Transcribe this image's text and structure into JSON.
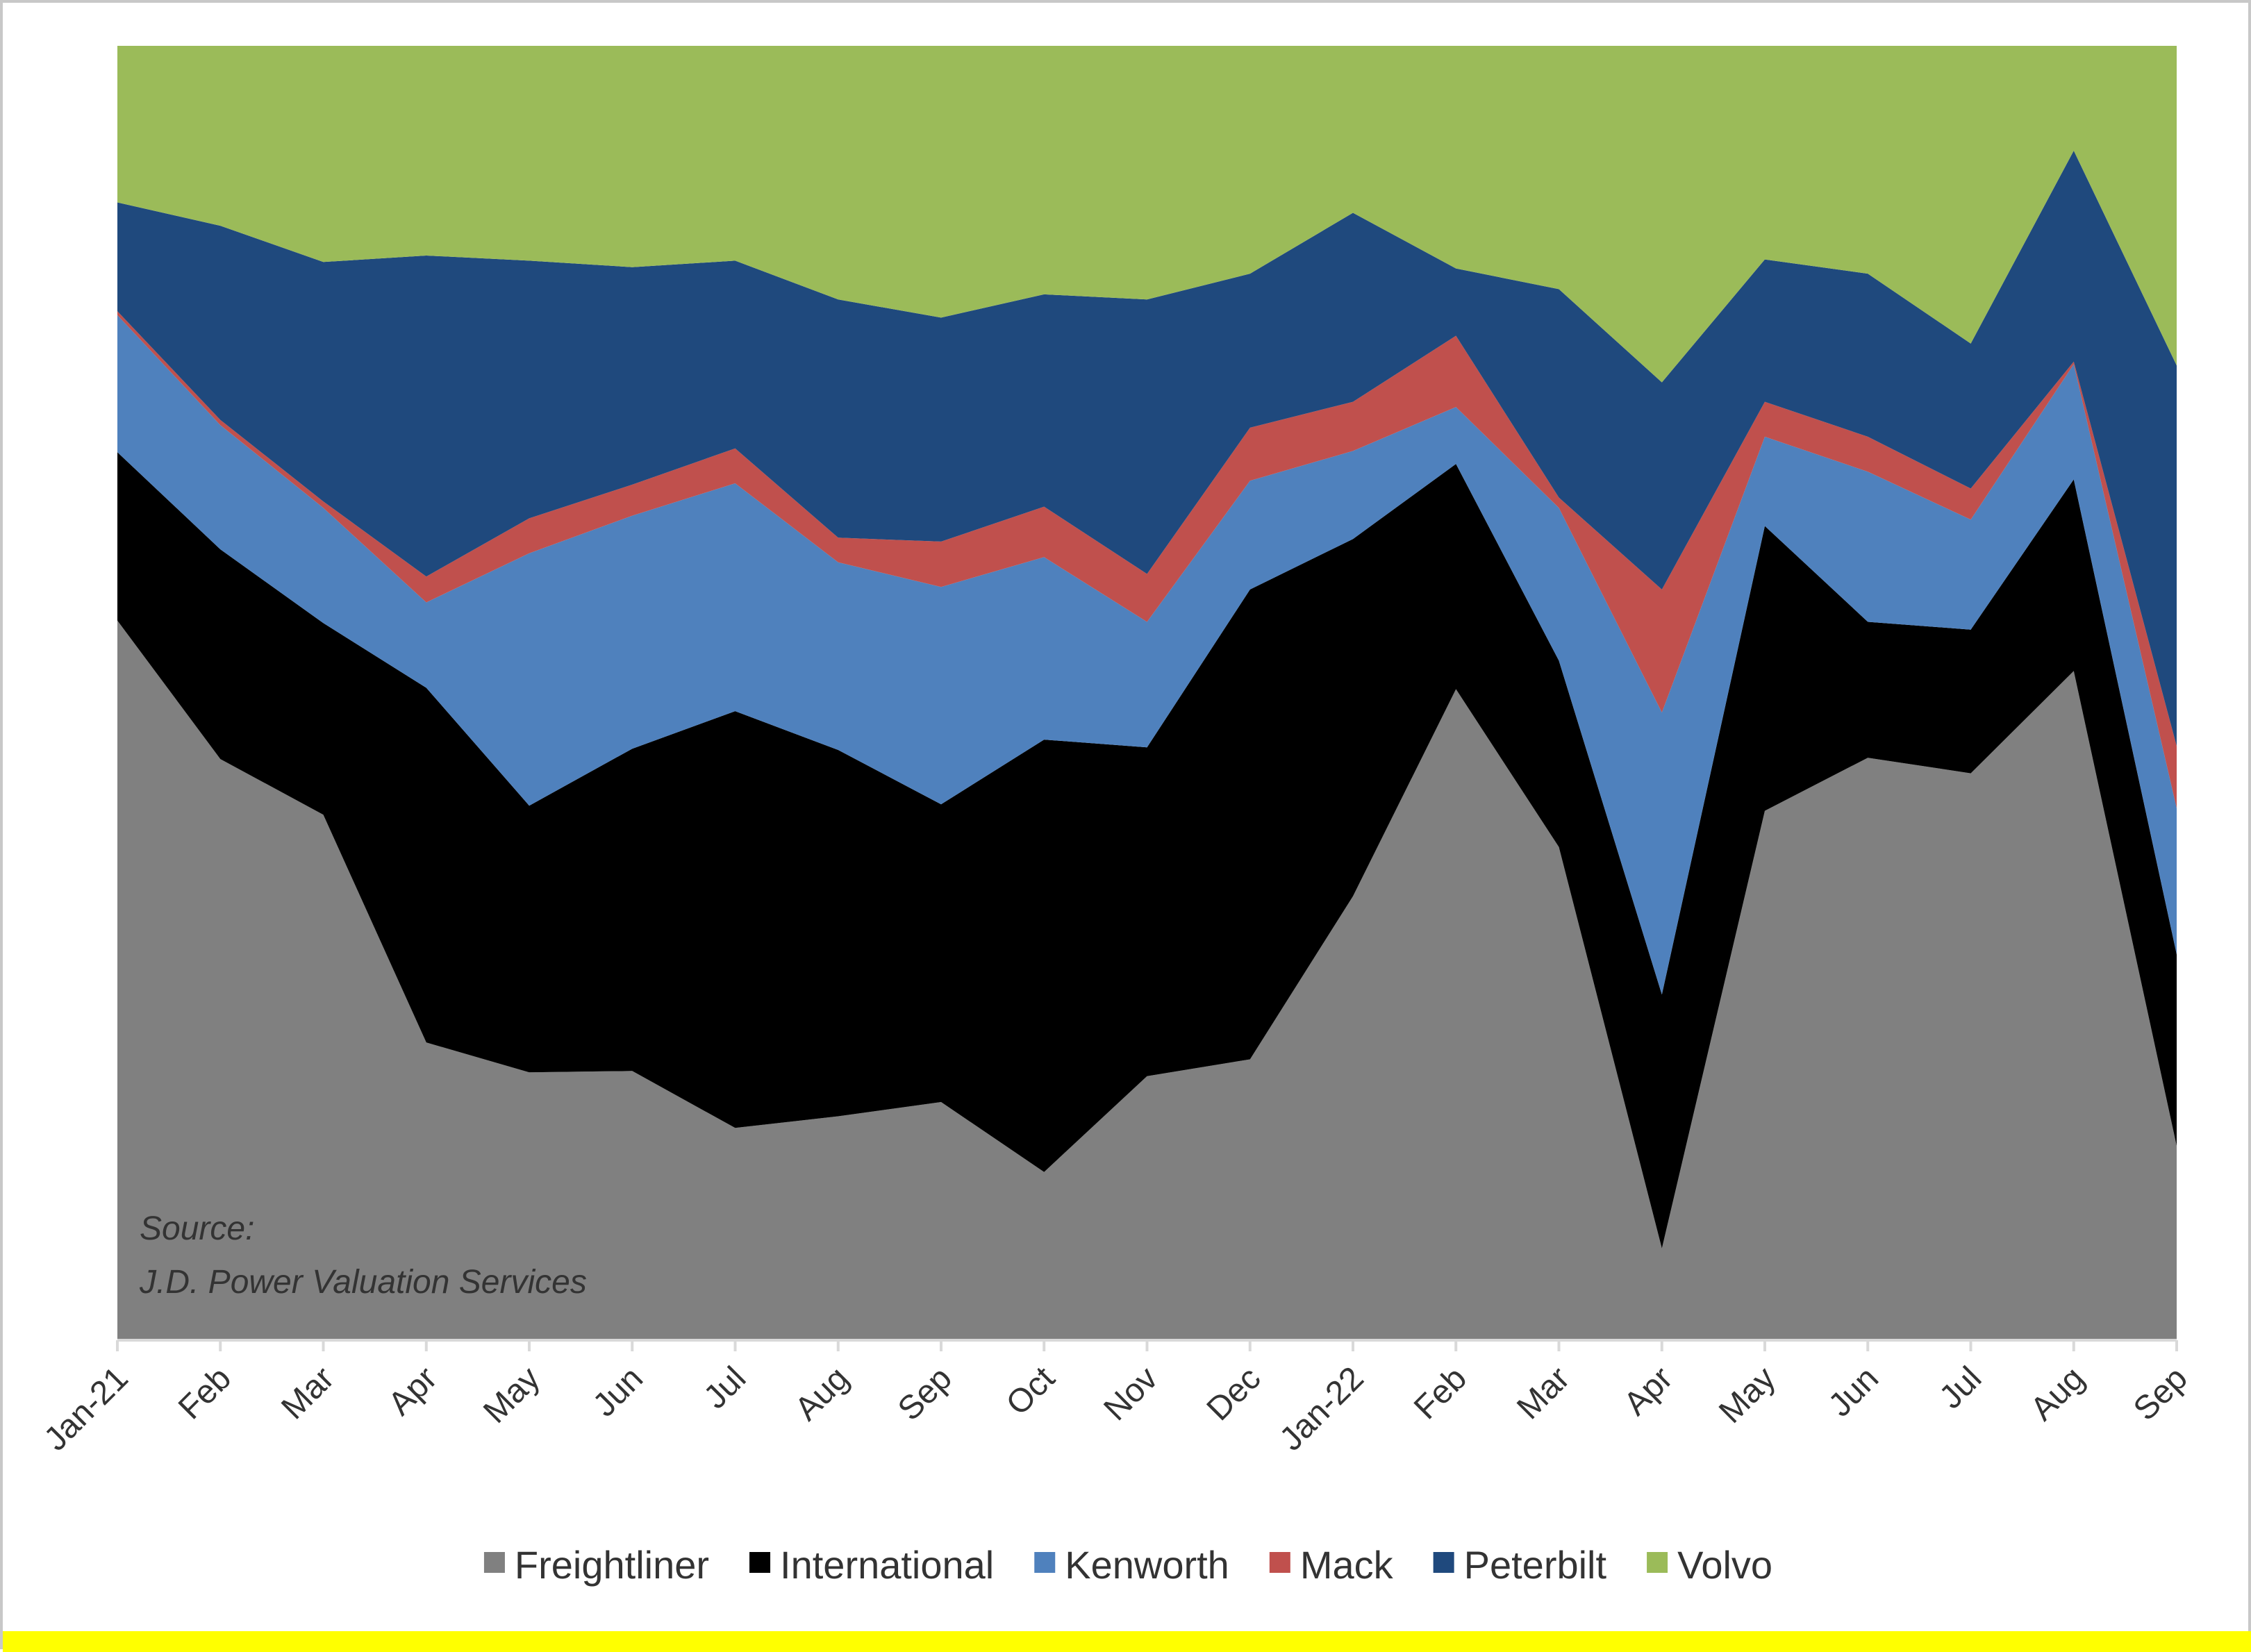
{
  "chart_data": {
    "type": "area",
    "stacked": "percent",
    "categories": [
      "Jan-21",
      "Feb",
      "Mar",
      "Apr",
      "May",
      "Jun",
      "Jul",
      "Aug",
      "Sep",
      "Oct",
      "Nov",
      "Dec",
      "Jan-22",
      "Feb",
      "Mar",
      "Apr",
      "May",
      "Jun",
      "Jul",
      "Aug",
      "Sep"
    ],
    "series": [
      {
        "name": "Freightliner",
        "color": "#808080",
        "values": [
          55.6,
          44.9,
          40.6,
          23.0,
          20.7,
          20.8,
          16.4,
          17.3,
          18.4,
          13.0,
          20.4,
          21.7,
          34.3,
          50.3,
          38.1,
          7.1,
          40.9,
          45.0,
          43.8,
          51.7,
          15.0
        ]
      },
      {
        "name": "International",
        "color": "#000000",
        "values": [
          13.0,
          16.2,
          14.8,
          27.4,
          20.6,
          24.9,
          32.2,
          28.3,
          23.0,
          33.4,
          25.4,
          36.3,
          27.6,
          17.4,
          14.4,
          19.6,
          22.0,
          10.5,
          11.1,
          14.8,
          14.8
        ]
      },
      {
        "name": "Kenworth",
        "color": "#4f81bd",
        "values": [
          10.6,
          9.6,
          8.9,
          6.6,
          19.5,
          18.0,
          17.6,
          14.5,
          16.8,
          14.1,
          9.7,
          8.4,
          6.8,
          4.4,
          11.8,
          21.8,
          6.9,
          11.6,
          8.5,
          8.9,
          11.3
        ]
      },
      {
        "name": "Mack",
        "color": "#c0504d",
        "values": [
          0.3,
          0.4,
          0.5,
          2.0,
          2.7,
          2.4,
          2.7,
          1.9,
          3.5,
          3.9,
          3.7,
          4.1,
          3.8,
          5.5,
          0.8,
          9.5,
          2.7,
          2.7,
          2.4,
          0.2,
          4.8
        ]
      },
      {
        "name": "Peterbilt",
        "color": "#1f497d",
        "values": [
          8.4,
          15.0,
          18.5,
          24.8,
          19.9,
          16.8,
          14.5,
          18.4,
          17.3,
          16.4,
          21.2,
          11.9,
          14.6,
          5.2,
          16.1,
          16.0,
          11.0,
          12.6,
          11.2,
          16.3,
          29.4
        ]
      },
      {
        "name": "Volvo",
        "color": "#9bbb59",
        "values": [
          12.1,
          13.9,
          16.7,
          16.2,
          16.6,
          17.1,
          16.6,
          19.6,
          21.0,
          19.2,
          19.6,
          17.6,
          12.9,
          17.2,
          18.8,
          26.0,
          16.5,
          17.6,
          23.0,
          8.1,
          24.7
        ]
      }
    ],
    "ylim": [
      0,
      100
    ],
    "grid": false,
    "legend": "bottom",
    "annotations": [
      "Source:",
      "J.D. Power Valuation Services"
    ]
  }
}
